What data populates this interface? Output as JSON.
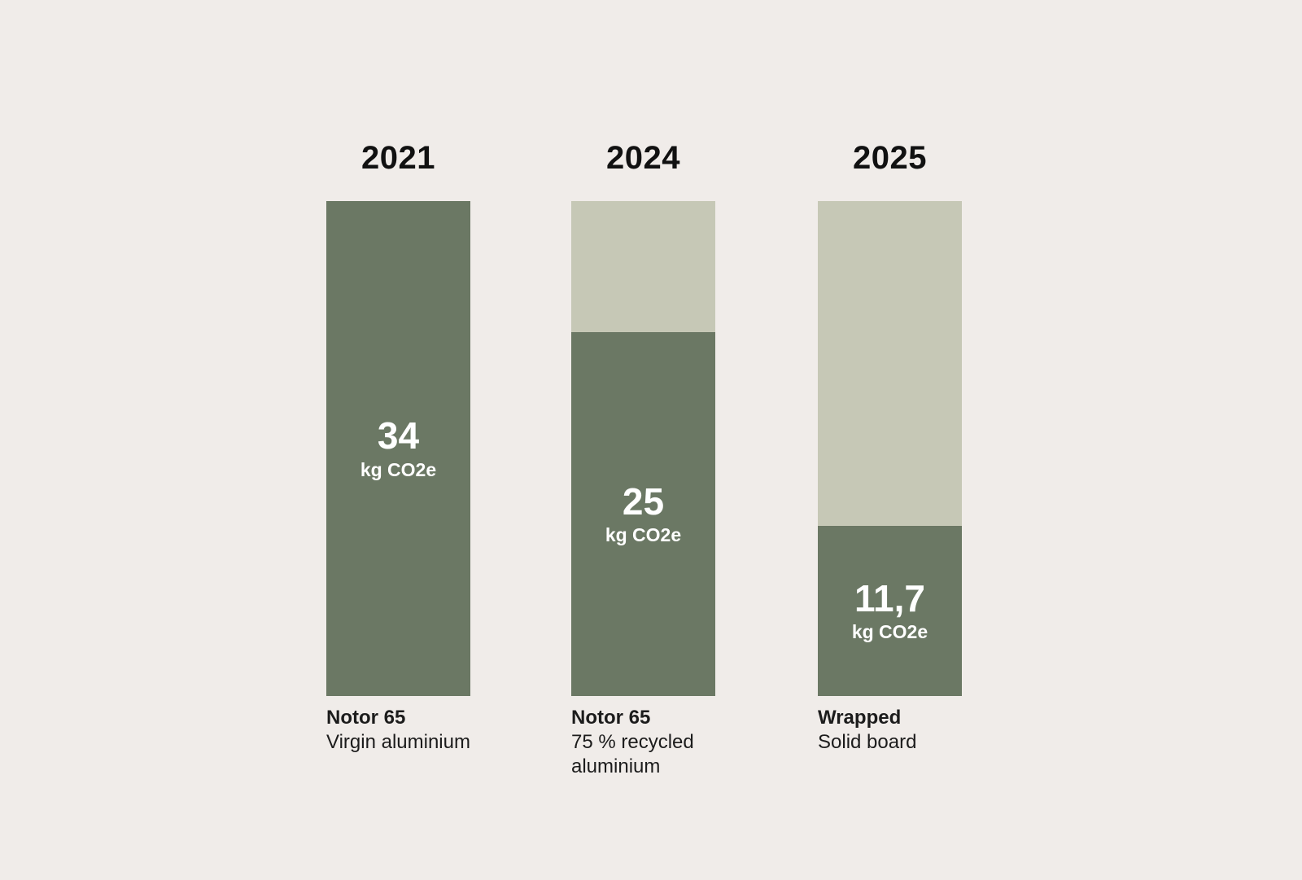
{
  "chart_data": {
    "type": "bar",
    "subtype": "stacked-comparison",
    "title": "",
    "unit_label": "kg CO2e",
    "max_value": 34,
    "legend_position": "none",
    "grid": false,
    "columns": [
      {
        "year": "2021",
        "value": 34,
        "value_label": "34",
        "unit": "kg CO2e",
        "name": "Notor 65",
        "material": "Virgin aluminium"
      },
      {
        "year": "2024",
        "value": 25,
        "value_label": "25",
        "unit": "kg CO2e",
        "name": "Notor 65",
        "material": "75 % recycled aluminium"
      },
      {
        "year": "2025",
        "value": 11.7,
        "value_label": "11,7",
        "unit": "kg CO2e",
        "name": "Wrapped",
        "material": "Solid board"
      }
    ],
    "colors": {
      "background": "#f0ece9",
      "bar_dark": "#6b7864",
      "bar_light": "#c6c8b6",
      "value_text": "#ffffff",
      "label_text": "#1c1c1c"
    }
  }
}
